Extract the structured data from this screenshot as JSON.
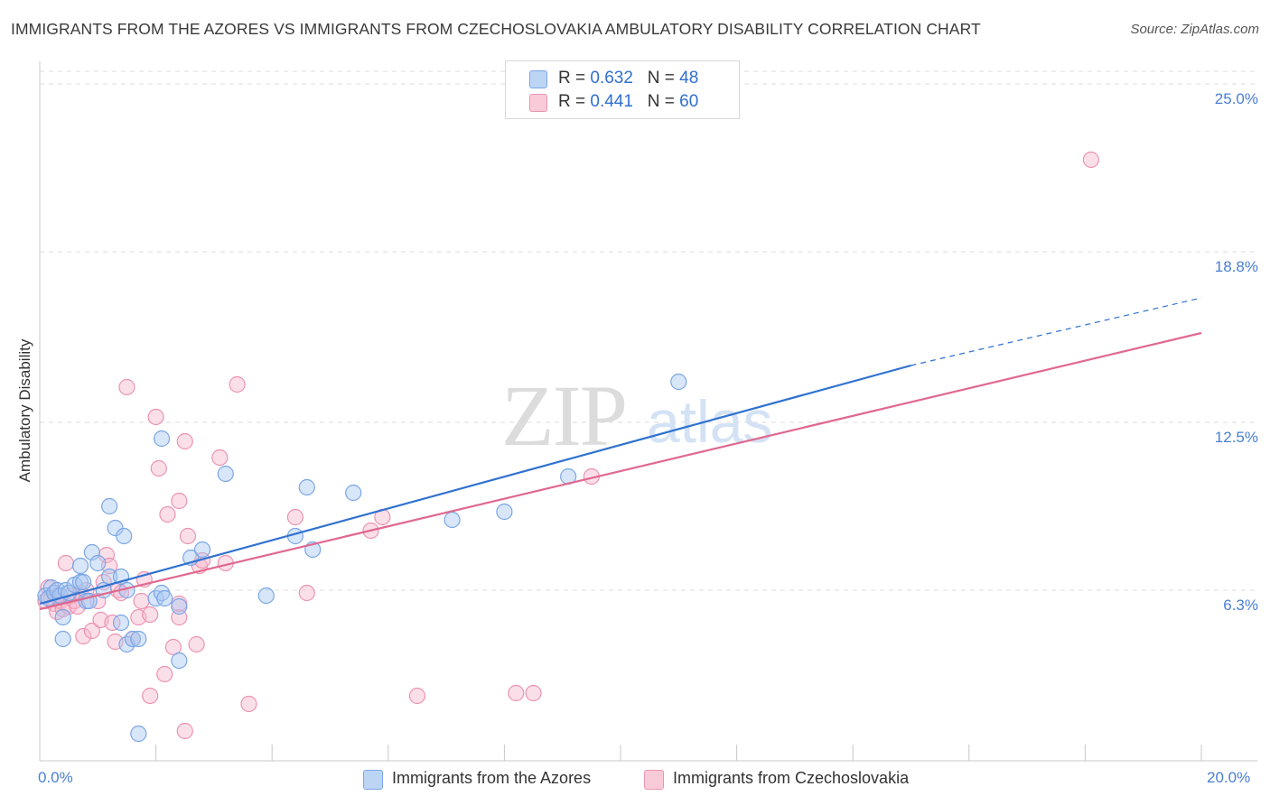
{
  "title": "IMMIGRANTS FROM THE AZORES VS IMMIGRANTS FROM CZECHOSLOVAKIA AMBULATORY DISABILITY CORRELATION CHART",
  "source": "Source: ZipAtlas.com",
  "watermark": {
    "zip": "ZIP",
    "atlas": "atlas"
  },
  "legend": {
    "series1": {
      "r_label": "R = ",
      "r_value": "0.632",
      "n_label": "N = ",
      "n_value": "48"
    },
    "series2": {
      "r_label": "R = ",
      "r_value": "0.441",
      "n_label": "N = ",
      "n_value": "60"
    }
  },
  "bottom_legend": {
    "series1": "Immigrants from the Azores",
    "series2": "Immigrants from Czechoslovakia"
  },
  "colors": {
    "blue_fill": "#a9c8f2",
    "blue_stroke": "#7aa6e6",
    "blue_line": "#2f72d0",
    "pink_fill": "#f6b8cc",
    "pink_stroke": "#ec93b1",
    "pink_line": "#e0688f",
    "tick_text": "#4a7fd4",
    "grid": "#dcdcdc"
  },
  "chart_data": {
    "type": "scatter",
    "title": "IMMIGRANTS FROM THE AZORES VS IMMIGRANTS FROM CZECHOSLOVAKIA AMBULATORY DISABILITY CORRELATION CHART",
    "xlabel": "",
    "ylabel": "Ambulatory Disability",
    "xlim": [
      0,
      20
    ],
    "ylim": [
      0,
      25.6
    ],
    "x_tick_labels": [
      {
        "value": 0,
        "label": "0.0%"
      },
      {
        "value": 20,
        "label": "20.0%"
      }
    ],
    "y_ticks": [
      {
        "value": 6.3,
        "label": "6.3%"
      },
      {
        "value": 12.5,
        "label": "12.5%"
      },
      {
        "value": 18.8,
        "label": "18.8%"
      },
      {
        "value": 25.0,
        "label": "25.0%"
      }
    ],
    "x_minor_ticks": [
      2,
      4,
      6,
      8,
      10,
      12,
      14,
      16,
      18,
      20
    ],
    "series": [
      {
        "name": "Immigrants from the Azores",
        "r": 0.632,
        "n": 48,
        "trend": {
          "x": [
            0,
            15
          ],
          "y": [
            5.8,
            14.6
          ],
          "dashed_to": {
            "x": 20,
            "y": 17.1
          }
        },
        "points": [
          [
            0.1,
            6.1
          ],
          [
            0.2,
            6.4
          ],
          [
            0.15,
            6.0
          ],
          [
            0.25,
            6.2
          ],
          [
            0.3,
            6.3
          ],
          [
            0.35,
            6.1
          ],
          [
            0.4,
            5.3
          ],
          [
            0.45,
            6.3
          ],
          [
            0.5,
            6.2
          ],
          [
            0.6,
            6.5
          ],
          [
            0.7,
            6.6
          ],
          [
            0.75,
            6.6
          ],
          [
            0.8,
            5.9
          ],
          [
            0.85,
            5.9
          ],
          [
            0.7,
            7.2
          ],
          [
            0.9,
            7.7
          ],
          [
            1.0,
            7.3
          ],
          [
            1.1,
            6.3
          ],
          [
            1.2,
            6.8
          ],
          [
            1.3,
            8.6
          ],
          [
            1.5,
            6.3
          ],
          [
            1.45,
            8.3
          ],
          [
            1.4,
            6.8
          ],
          [
            1.2,
            9.4
          ],
          [
            1.5,
            4.3
          ],
          [
            1.6,
            4.5
          ],
          [
            1.7,
            4.5
          ],
          [
            1.4,
            5.1
          ],
          [
            1.7,
            1.0
          ],
          [
            0.4,
            4.5
          ],
          [
            2.1,
            11.9
          ],
          [
            2.0,
            6.0
          ],
          [
            2.1,
            6.2
          ],
          [
            2.15,
            6.0
          ],
          [
            2.4,
            5.7
          ],
          [
            2.6,
            7.5
          ],
          [
            2.8,
            7.8
          ],
          [
            3.2,
            10.6
          ],
          [
            2.4,
            3.7
          ],
          [
            3.9,
            6.1
          ],
          [
            4.4,
            8.3
          ],
          [
            4.6,
            10.1
          ],
          [
            4.7,
            7.8
          ],
          [
            5.4,
            9.9
          ],
          [
            7.1,
            8.9
          ],
          [
            8.0,
            9.2
          ],
          [
            9.1,
            10.5
          ],
          [
            11.0,
            14.0
          ]
        ]
      },
      {
        "name": "Immigrants from Czechoslovakia",
        "r": 0.441,
        "n": 60,
        "trend": {
          "x": [
            0,
            20
          ],
          "y": [
            5.6,
            15.8
          ]
        },
        "points": [
          [
            0.1,
            5.9
          ],
          [
            0.2,
            6.0
          ],
          [
            0.25,
            5.8
          ],
          [
            0.3,
            5.5
          ],
          [
            0.35,
            5.9
          ],
          [
            0.4,
            5.6
          ],
          [
            0.45,
            7.3
          ],
          [
            0.5,
            5.7
          ],
          [
            0.55,
            6.1
          ],
          [
            0.6,
            5.9
          ],
          [
            0.65,
            5.7
          ],
          [
            0.7,
            6.2
          ],
          [
            0.75,
            4.6
          ],
          [
            0.8,
            6.3
          ],
          [
            0.9,
            4.8
          ],
          [
            1.0,
            5.9
          ],
          [
            1.05,
            5.2
          ],
          [
            1.1,
            6.6
          ],
          [
            1.15,
            7.6
          ],
          [
            1.2,
            7.2
          ],
          [
            1.3,
            4.4
          ],
          [
            1.35,
            6.3
          ],
          [
            1.4,
            6.2
          ],
          [
            1.5,
            13.8
          ],
          [
            1.6,
            4.5
          ],
          [
            1.7,
            5.3
          ],
          [
            1.75,
            5.9
          ],
          [
            1.8,
            6.7
          ],
          [
            1.9,
            5.4
          ],
          [
            1.9,
            2.4
          ],
          [
            2.0,
            12.7
          ],
          [
            2.05,
            10.8
          ],
          [
            2.15,
            3.2
          ],
          [
            2.2,
            9.1
          ],
          [
            2.3,
            4.2
          ],
          [
            2.4,
            5.3
          ],
          [
            2.4,
            9.6
          ],
          [
            2.5,
            11.8
          ],
          [
            2.55,
            8.3
          ],
          [
            2.5,
            1.1
          ],
          [
            2.7,
            4.3
          ],
          [
            2.75,
            7.2
          ],
          [
            2.8,
            7.4
          ],
          [
            3.1,
            11.2
          ],
          [
            3.2,
            7.3
          ],
          [
            3.4,
            13.9
          ],
          [
            3.6,
            2.1
          ],
          [
            4.4,
            9.0
          ],
          [
            4.6,
            6.2
          ],
          [
            5.7,
            8.5
          ],
          [
            5.9,
            9.0
          ],
          [
            6.5,
            2.4
          ],
          [
            8.2,
            2.5
          ],
          [
            8.5,
            2.5
          ],
          [
            9.5,
            10.5
          ],
          [
            18.1,
            22.2
          ],
          [
            0.15,
            6.4
          ],
          [
            0.3,
            6.1
          ],
          [
            1.25,
            5.1
          ],
          [
            2.4,
            5.8
          ]
        ]
      }
    ]
  }
}
